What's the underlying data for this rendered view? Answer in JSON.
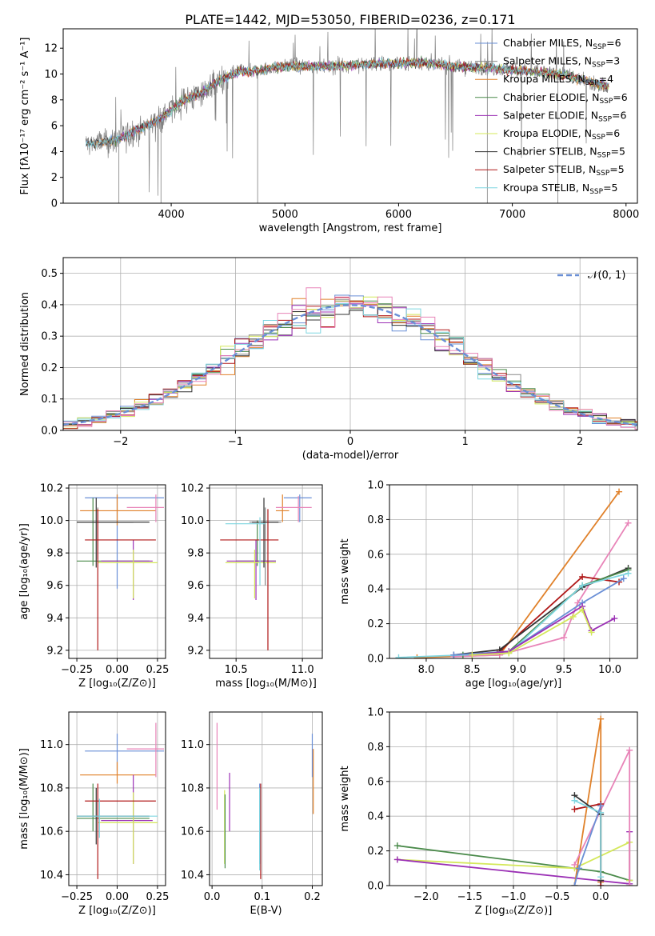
{
  "figure": {
    "title": "PLATE=1442, MJD=53050, FIBERID=0236, z=0.171"
  },
  "models": [
    {
      "key": "chabrier_miles",
      "label": "Chabrier MILES, N",
      "nssp": "6",
      "color": "#6a8fd6"
    },
    {
      "key": "salpeter_miles",
      "label": "Salpeter MILES, N",
      "nssp": "3",
      "color": "#888888"
    },
    {
      "key": "kroupa_miles",
      "label": "Kroupa MILES, N",
      "nssp": "4",
      "color": "#e0812a"
    },
    {
      "key": "chabrier_elodie",
      "label": "Chabrier ELODIE, N",
      "nssp": "6",
      "color": "#4a8a4a"
    },
    {
      "key": "salpeter_elodie",
      "label": "Salpeter ELODIE, N",
      "nssp": "6",
      "color": "#9b30b5"
    },
    {
      "key": "kroupa_elodie",
      "label": "Kroupa ELODIE, N",
      "nssp": "6",
      "color": "#d4e85a"
    },
    {
      "key": "chabrier_stelib",
      "label": "Chabrier STELIB, N",
      "nssp": "5",
      "color": "#333333"
    },
    {
      "key": "salpeter_stelib",
      "label": "Salpeter STELIB, N",
      "nssp": "5",
      "color": "#b01818"
    },
    {
      "key": "kroupa_stelib",
      "label": "Kroupa STELIB, N",
      "nssp": "5",
      "color": "#7fd6e0"
    }
  ],
  "extra_colors": {
    "pink": "#e884b8"
  },
  "chart_data": [
    {
      "id": "spectrum",
      "type": "line",
      "title": "PLATE=1442, MJD=53050, FIBERID=0236, z=0.171",
      "xlabel": "wavelength [Angstrom, rest frame]",
      "ylabel": "Flux [fλ10⁻¹⁷ erg cm⁻² s⁻¹ A⁻¹]",
      "xlim": [
        3050,
        8100
      ],
      "ylim": [
        0,
        13.5
      ],
      "xticks": [
        4000,
        5000,
        6000,
        7000,
        8000
      ],
      "yticks": [
        0,
        2,
        4,
        6,
        8,
        10,
        12
      ],
      "continuum_x": [
        3250,
        3400,
        3500,
        3600,
        3700,
        3800,
        3900,
        4000,
        4100,
        4200,
        4300,
        4400,
        4500,
        4600,
        4700,
        4800,
        4900,
        5000,
        5200,
        5400,
        5600,
        5800,
        6000,
        6200,
        6400,
        6600,
        6800,
        7000,
        7200,
        7400,
        7600,
        7850
      ],
      "continuum_y": [
        4.6,
        4.7,
        4.8,
        5.2,
        5.7,
        6.1,
        6.5,
        7.2,
        7.9,
        8.3,
        8.7,
        9.4,
        9.8,
        10.2,
        10.2,
        10.3,
        10.5,
        10.6,
        10.6,
        10.6,
        10.7,
        10.8,
        10.8,
        10.9,
        10.7,
        10.5,
        10.5,
        10.3,
        10.2,
        10.0,
        9.6,
        9.0
      ],
      "legend": "upper-right"
    },
    {
      "id": "residuals",
      "type": "step",
      "xlabel": "(data-model)/error",
      "ylabel": "Normed distribution",
      "xlim": [
        -2.5,
        2.5
      ],
      "ylim": [
        0,
        0.55
      ],
      "xticks": [
        -2,
        -1,
        0,
        1,
        2
      ],
      "yticks": [
        0.0,
        0.1,
        0.2,
        0.3,
        0.4,
        0.5
      ],
      "gauss_label": "𝒩(0, 1)",
      "legend": "upper-right"
    },
    {
      "id": "age_vs_Z",
      "type": "errorbar",
      "xlabel": "Z [log₁₀(Z/Z⊙)]",
      "ylabel": "age  [log₁₀(age/yr)]",
      "xlim": [
        -0.3,
        0.3
      ],
      "ylim": [
        9.15,
        10.22
      ],
      "xticks": [
        -0.25,
        0.0,
        0.25
      ],
      "yticks": [
        9.2,
        9.4,
        9.6,
        9.8,
        10.0,
        10.2
      ],
      "points": [
        {
          "m": 0,
          "x": 0.0,
          "xl": -0.2,
          "xh": 0.29,
          "y": 10.14,
          "yl": 9.58,
          "yh": 10.16
        },
        {
          "m": 1,
          "x": -0.12,
          "xl": -0.25,
          "xh": 0.1,
          "y": 9.99,
          "yl": 9.76,
          "yh": 10.08
        },
        {
          "m": 2,
          "x": 0.0,
          "xl": -0.23,
          "xh": 0.24,
          "y": 10.06,
          "yl": 9.97,
          "yh": 10.16
        },
        {
          "m": 3,
          "x": -0.15,
          "xl": -0.25,
          "xh": 0.2,
          "y": 9.75,
          "yl": 9.72,
          "yh": 10.14
        },
        {
          "m": 4,
          "x": 0.1,
          "xl": -0.1,
          "xh": 0.22,
          "y": 9.75,
          "yl": 9.51,
          "yh": 9.88
        },
        {
          "m": 5,
          "x": 0.1,
          "xl": -0.12,
          "xh": 0.25,
          "y": 9.74,
          "yl": 9.52,
          "yh": 9.82
        },
        {
          "m": 6,
          "x": -0.13,
          "xl": -0.25,
          "xh": 0.2,
          "y": 9.99,
          "yl": 9.71,
          "yh": 10.14
        },
        {
          "m": 7,
          "x": -0.12,
          "xl": -0.2,
          "xh": 0.24,
          "y": 9.88,
          "yl": 9.2,
          "yh": 10.07
        },
        {
          "m": 9,
          "x": 0.24,
          "xl": 0.06,
          "xh": 0.29,
          "y": 10.08,
          "yl": 9.99,
          "yh": 10.16
        }
      ]
    },
    {
      "id": "age_vs_mass",
      "type": "errorbar",
      "xlabel": "mass [log₁₀(M/M⊙)]",
      "xlim": [
        10.3,
        11.15
      ],
      "ylim": [
        9.15,
        10.22
      ],
      "xticks": [
        10.5,
        11.0
      ],
      "yticks": [
        9.2,
        9.4,
        9.6,
        9.8,
        10.0,
        10.2
      ],
      "points": [
        {
          "m": 0,
          "x": 10.98,
          "xl": 10.86,
          "xh": 11.07,
          "y": 10.14,
          "yl": 9.99,
          "yh": 10.16
        },
        {
          "m": 1,
          "x": 10.72,
          "xl": 10.6,
          "xh": 10.84,
          "y": 9.99,
          "yl": 9.6,
          "yh": 10.08
        },
        {
          "m": 2,
          "x": 10.85,
          "xl": 10.8,
          "xh": 10.9,
          "y": 10.06,
          "yl": 9.99,
          "yh": 10.16
        },
        {
          "m": 3,
          "x": 10.66,
          "xl": 10.5,
          "xh": 10.8,
          "y": 9.75,
          "yl": 9.72,
          "yh": 10.0
        },
        {
          "m": 4,
          "x": 10.65,
          "xl": 10.43,
          "xh": 10.8,
          "y": 9.75,
          "yl": 9.51,
          "yh": 9.88
        },
        {
          "m": 5,
          "x": 10.64,
          "xl": 10.42,
          "xh": 10.8,
          "y": 9.74,
          "yl": 9.52,
          "yh": 9.82
        },
        {
          "m": 6,
          "x": 10.71,
          "xl": 10.62,
          "xh": 10.82,
          "y": 9.99,
          "yl": 9.71,
          "yh": 10.14
        },
        {
          "m": 7,
          "x": 10.74,
          "xl": 10.38,
          "xh": 10.82,
          "y": 9.88,
          "yl": 9.2,
          "yh": 10.07
        },
        {
          "m": 8,
          "x": 10.68,
          "xl": 10.42,
          "xh": 10.72,
          "y": 9.98,
          "yl": 9.6,
          "yh": 10.02
        },
        {
          "m": 9,
          "x": 10.97,
          "xl": 10.8,
          "xh": 11.07,
          "y": 10.08,
          "yl": 9.99,
          "yh": 10.15
        }
      ]
    },
    {
      "id": "weight_vs_age",
      "type": "line",
      "xlabel": "age  [log₁₀(age/yr)]",
      "ylabel": "mass weight",
      "xlim": [
        7.6,
        10.3
      ],
      "ylim": [
        0,
        1.0
      ],
      "xticks": [
        8.0,
        8.5,
        9.0,
        9.5,
        10.0
      ],
      "yticks": [
        0.0,
        0.2,
        0.4,
        0.6,
        0.8,
        1.0
      ],
      "series": [
        {
          "m": 2,
          "x": [
            7.9,
            8.8,
            10.1
          ],
          "y": [
            0.005,
            0.02,
            0.96
          ]
        },
        {
          "m": 9,
          "x": [
            8.3,
            8.8,
            9.5,
            9.65,
            10.2
          ],
          "y": [
            0.01,
            0.02,
            0.12,
            0.32,
            0.78
          ]
        },
        {
          "m": 7,
          "x": [
            8.8,
            9.7,
            10.1
          ],
          "y": [
            0.04,
            0.47,
            0.44
          ]
        },
        {
          "m": 6,
          "x": [
            8.3,
            8.8,
            9.7,
            10.2
          ],
          "y": [
            0.02,
            0.05,
            0.41,
            0.52
          ]
        },
        {
          "m": 3,
          "x": [
            8.4,
            8.9,
            9.7,
            10.2
          ],
          "y": [
            0.02,
            0.04,
            0.42,
            0.51
          ]
        },
        {
          "m": 8,
          "x": [
            7.7,
            8.9,
            9.7,
            10.2
          ],
          "y": [
            0.005,
            0.03,
            0.42,
            0.49
          ]
        },
        {
          "m": 0,
          "x": [
            8.3,
            8.9,
            9.7,
            10.15
          ],
          "y": [
            0.02,
            0.04,
            0.32,
            0.46
          ]
        },
        {
          "m": 4,
          "x": [
            8.5,
            8.9,
            9.7,
            9.8,
            10.05
          ],
          "y": [
            0.02,
            0.04,
            0.3,
            0.16,
            0.23
          ]
        },
        {
          "m": 5,
          "x": [
            8.5,
            8.9,
            9.6,
            9.7,
            9.8
          ],
          "y": [
            0.02,
            0.03,
            0.24,
            0.28,
            0.15
          ]
        }
      ]
    },
    {
      "id": "mass_vs_Z",
      "type": "errorbar",
      "xlabel": "Z [log₁₀(Z/Z⊙)]",
      "ylabel": "mass [log₁₀(M/M⊙)]",
      "xlim": [
        -0.3,
        0.3
      ],
      "ylim": [
        10.35,
        11.15
      ],
      "xticks": [
        -0.25,
        0.0,
        0.25
      ],
      "yticks": [
        10.4,
        10.6,
        10.8,
        11.0
      ],
      "points": [
        {
          "m": 0,
          "x": 0.0,
          "xl": -0.2,
          "xh": 0.29,
          "y": 10.97,
          "yl": 10.88,
          "yh": 11.05
        },
        {
          "m": 2,
          "x": 0.0,
          "xl": -0.23,
          "xh": 0.24,
          "y": 10.86,
          "yl": 10.82,
          "yh": 10.92
        },
        {
          "m": 3,
          "x": -0.15,
          "xl": -0.25,
          "xh": 0.2,
          "y": 10.66,
          "yl": 10.6,
          "yh": 10.82
        },
        {
          "m": 4,
          "x": 0.1,
          "xl": -0.1,
          "xh": 0.22,
          "y": 10.65,
          "yl": 10.45,
          "yh": 10.86
        },
        {
          "m": 5,
          "x": 0.1,
          "xl": -0.12,
          "xh": 0.25,
          "y": 10.64,
          "yl": 10.45,
          "yh": 10.78
        },
        {
          "m": 6,
          "x": -0.13,
          "xl": -0.25,
          "xh": 0.2,
          "y": 10.67,
          "yl": 10.54,
          "yh": 10.8
        },
        {
          "m": 7,
          "x": -0.12,
          "xl": -0.2,
          "xh": 0.24,
          "y": 10.74,
          "yl": 10.38,
          "yh": 10.82
        },
        {
          "m": 8,
          "x": -0.11,
          "xl": -0.25,
          "xh": 0.25,
          "y": 10.67,
          "yl": 10.57,
          "yh": 10.75
        },
        {
          "m": 9,
          "x": 0.24,
          "xl": 0.06,
          "xh": 0.29,
          "y": 10.98,
          "yl": 10.85,
          "yh": 11.1
        }
      ]
    },
    {
      "id": "mass_vs_ebv",
      "type": "errorbar",
      "xlabel": "E(B-V)",
      "xlim": [
        -0.005,
        0.22
      ],
      "ylim": [
        10.35,
        11.15
      ],
      "xticks": [
        0.0,
        0.1,
        0.2
      ],
      "yticks": [
        10.4,
        10.6,
        10.8,
        11.0
      ],
      "points": [
        {
          "m": 9,
          "x": 0.01,
          "y": 10.9,
          "yl": 10.7,
          "yh": 11.1
        },
        {
          "m": 5,
          "x": 0.025,
          "y": 10.62,
          "yl": 10.45,
          "yh": 10.79
        },
        {
          "m": 3,
          "x": 0.026,
          "y": 10.6,
          "yl": 10.43,
          "yh": 10.77
        },
        {
          "m": 4,
          "x": 0.035,
          "y": 10.72,
          "yl": 10.6,
          "yh": 10.87
        },
        {
          "m": 0,
          "x": 0.095,
          "y": 10.72,
          "yl": 10.45,
          "yh": 10.82
        },
        {
          "m": 7,
          "x": 0.097,
          "y": 10.6,
          "yl": 10.38,
          "yh": 10.82
        },
        {
          "m": 8,
          "x": 0.095,
          "y": 10.65,
          "yl": 10.42,
          "yh": 10.8
        },
        {
          "m": 2,
          "x": 0.202,
          "y": 10.83,
          "yl": 10.68,
          "yh": 10.98
        },
        {
          "m": 0,
          "x": 0.2,
          "y": 10.95,
          "yl": 10.85,
          "yh": 11.05
        }
      ]
    },
    {
      "id": "weight_vs_Z",
      "type": "line",
      "xlabel": "Z [log₁₀(Z/Z⊙)]",
      "ylabel": "mass weight",
      "xlim": [
        -2.42,
        0.42
      ],
      "ylim": [
        0,
        1.0
      ],
      "xticks": [
        -2.0,
        -1.5,
        -1.0,
        -0.5,
        0.0
      ],
      "yticks": [
        0.0,
        0.2,
        0.4,
        0.6,
        0.8,
        1.0
      ],
      "series": [
        {
          "m": 3,
          "x": [
            -2.33,
            0.0,
            0.33
          ],
          "y": [
            0.23,
            0.08,
            0.03
          ]
        },
        {
          "m": 5,
          "x": [
            -2.33,
            -0.3,
            0.33,
            0.33
          ],
          "y": [
            0.15,
            0.1,
            0.25,
            0.03
          ]
        },
        {
          "m": 4,
          "x": [
            -2.33,
            0.33,
            0.33
          ],
          "y": [
            0.15,
            0.01,
            0.31
          ]
        },
        {
          "m": 2,
          "x": [
            -0.3,
            0.0,
            0.0
          ],
          "y": [
            0.0,
            0.96,
            0.02
          ]
        },
        {
          "m": 9,
          "x": [
            -0.3,
            0.33,
            0.33
          ],
          "y": [
            0.12,
            0.78,
            0.0
          ]
        },
        {
          "m": 7,
          "x": [
            -0.3,
            0.0,
            0.0
          ],
          "y": [
            0.44,
            0.47,
            0.0
          ]
        },
        {
          "m": 6,
          "x": [
            -0.3,
            0.0,
            0.0
          ],
          "y": [
            0.52,
            0.41,
            0.03
          ]
        },
        {
          "m": 8,
          "x": [
            -0.3,
            0.0,
            0.0
          ],
          "y": [
            0.49,
            0.42,
            0.05
          ]
        },
        {
          "m": 0,
          "x": [
            -0.3,
            -0.25,
            0.0
          ],
          "y": [
            0.0,
            0.1,
            0.46
          ]
        }
      ]
    }
  ]
}
